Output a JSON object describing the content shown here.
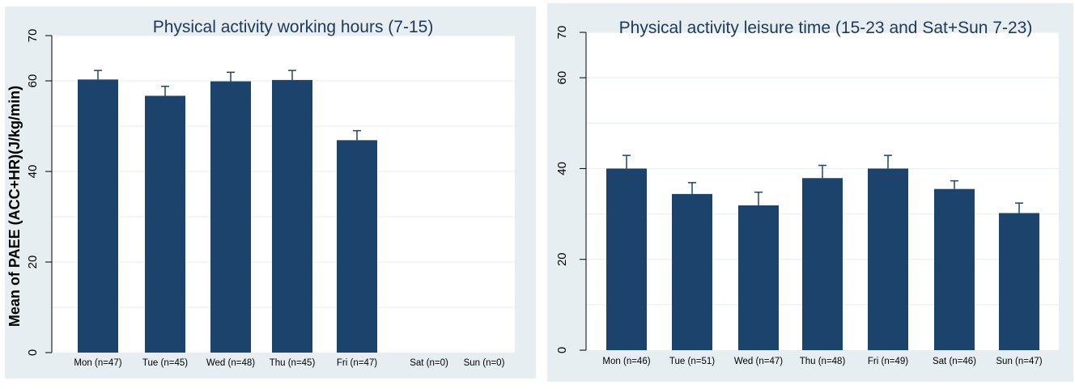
{
  "figure": {
    "ylabel": "Mean of PAEE (ACC+HR)(J/kg/min)"
  },
  "chart_data": [
    {
      "type": "bar",
      "title": "Physical activity working hours (7-15)",
      "ylabel": "Mean of PAEE (ACC+HR)(J/kg/min)",
      "xlabel": "",
      "ylim": [
        0,
        70
      ],
      "yticks": [
        0,
        20,
        40,
        60,
        70
      ],
      "grid": true,
      "categories": [
        "Mon (n=47)",
        "Tue (n=45)",
        "Wed (n=48)",
        "Thu (n=45)",
        "Fri (n=47)",
        "Sat (n=0)",
        "Sun (n=0)"
      ],
      "values": [
        60.3,
        56.7,
        59.9,
        60.2,
        46.9,
        null,
        null
      ],
      "error_upper": [
        62.3,
        58.8,
        61.9,
        62.3,
        49.0,
        null,
        null
      ],
      "bar_color": "#1c436b",
      "panel_background": "#e7eef1"
    },
    {
      "type": "bar",
      "title": "Physical activity leisure time (15-23 and Sat+Sun 7-23)",
      "ylabel": "",
      "xlabel": "",
      "ylim": [
        0,
        70
      ],
      "yticks": [
        0,
        20,
        40,
        60,
        70
      ],
      "grid": true,
      "categories": [
        "Mon (n=46)",
        "Tue (n=51)",
        "Wed (n=47)",
        "Thu (n=48)",
        "Fri (n=49)",
        "Sat (n=46)",
        "Sun (n=47)"
      ],
      "values": [
        40.0,
        34.4,
        31.9,
        37.9,
        40.0,
        35.5,
        30.2
      ],
      "error_upper": [
        42.9,
        36.9,
        34.8,
        40.7,
        42.9,
        37.3,
        32.4
      ],
      "bar_color": "#1c436b",
      "panel_background": "#e7eef1"
    }
  ]
}
